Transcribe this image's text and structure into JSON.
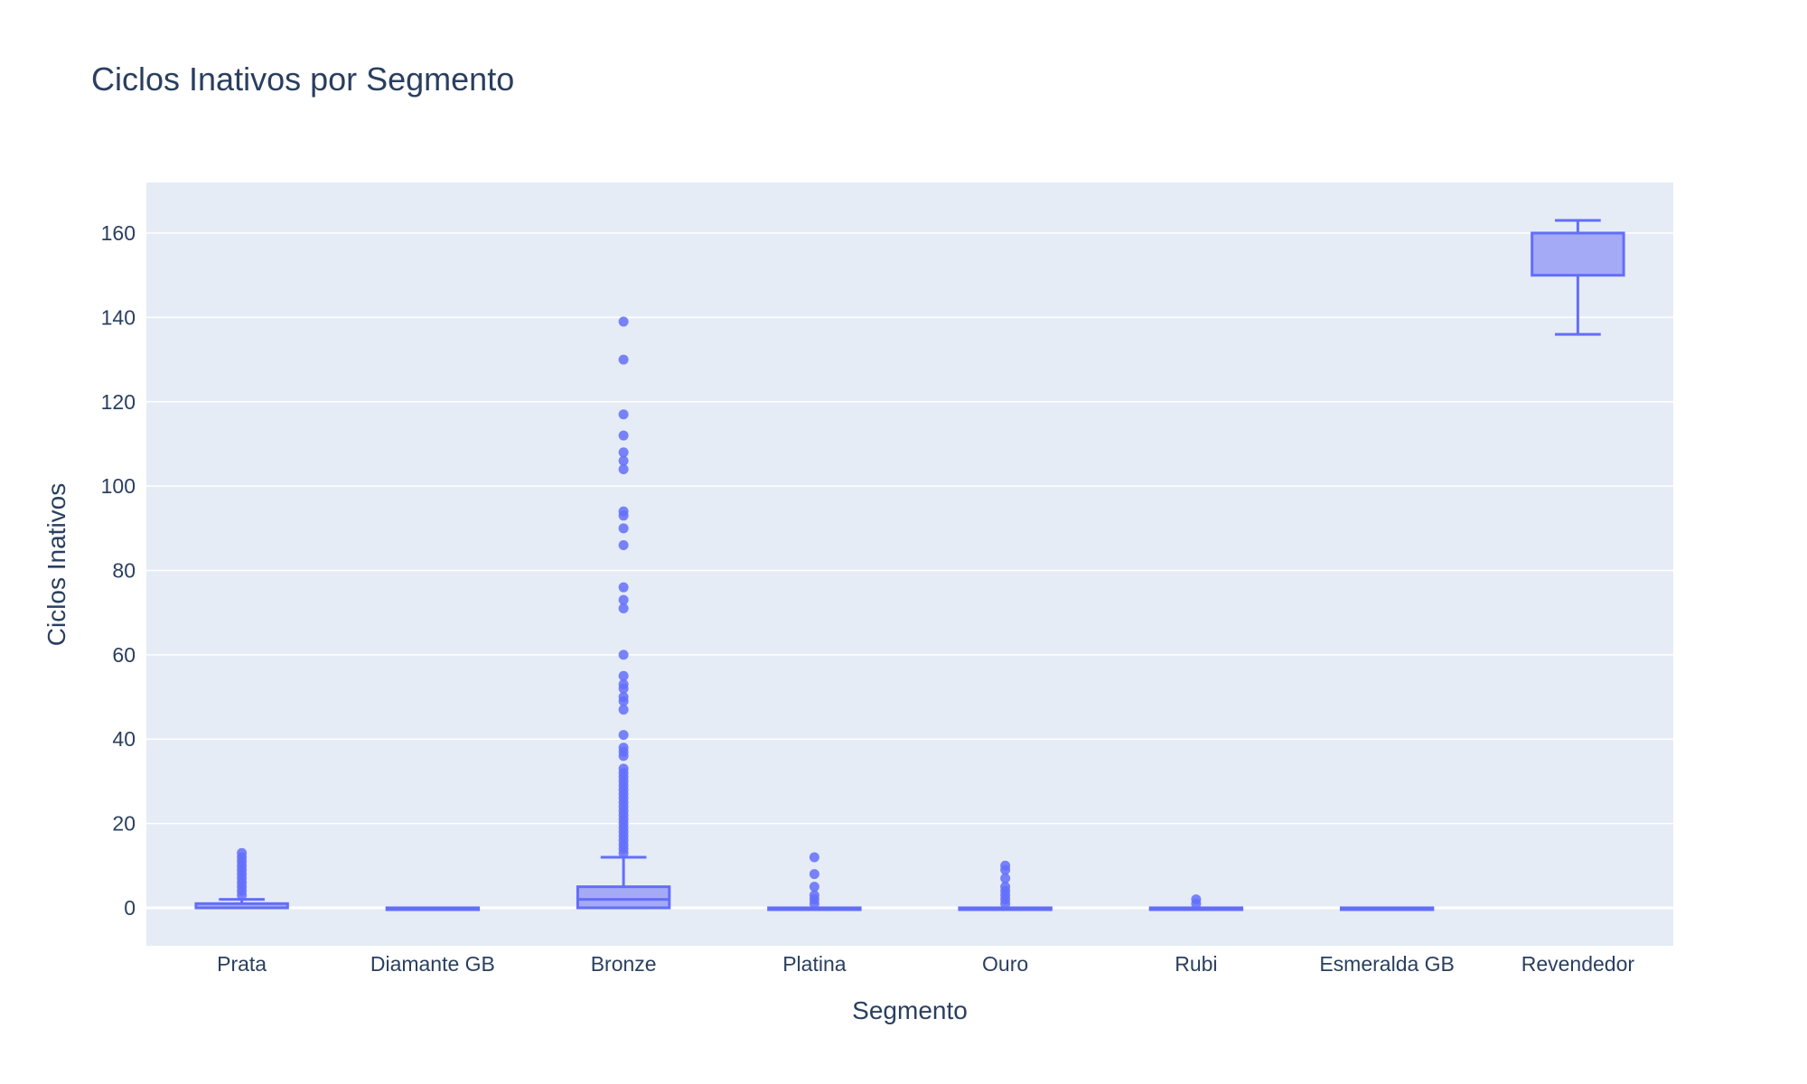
{
  "chart_data": {
    "type": "box",
    "title": "Ciclos Inativos por Segmento",
    "xlabel": "Segmento",
    "ylabel": "Ciclos Inativos",
    "ylim": [
      -9,
      172
    ],
    "yticks": [
      0,
      20,
      40,
      60,
      80,
      100,
      120,
      140,
      160
    ],
    "grid": true,
    "legend": "none",
    "colors": {
      "plot_bg": "#e5ecf6",
      "grid": "#ffffff",
      "box_line": "#636efa",
      "box_fill": "#a5aaf6",
      "outlier": "#636efa",
      "text": "#2a3f5f"
    },
    "categories": [
      "Prata",
      "Diamante GB",
      "Bronze",
      "Platina",
      "Ouro",
      "Rubi",
      "Esmeralda GB",
      "Revendedor"
    ],
    "boxes": [
      {
        "category": "Prata",
        "lowerfence": 0,
        "q1": 0,
        "median": 0,
        "q3": 1,
        "upperfence": 2,
        "outliers": [
          3,
          4,
          5,
          6,
          7,
          8,
          9,
          10,
          11,
          12,
          13
        ]
      },
      {
        "category": "Diamante GB",
        "lowerfence": 0,
        "q1": 0,
        "median": 0,
        "q3": 0,
        "upperfence": 0,
        "outliers": []
      },
      {
        "category": "Bronze",
        "lowerfence": 0,
        "q1": 0,
        "median": 2,
        "q3": 5,
        "upperfence": 12,
        "outliers": [
          13,
          14,
          15,
          16,
          17,
          18,
          19,
          20,
          21,
          22,
          23,
          24,
          25,
          26,
          27,
          28,
          29,
          30,
          31,
          32,
          33,
          36,
          37,
          38,
          41,
          47,
          49,
          50,
          52,
          53,
          55,
          60,
          71,
          73,
          76,
          86,
          90,
          93,
          94,
          104,
          106,
          108,
          112,
          117,
          130,
          139
        ]
      },
      {
        "category": "Platina",
        "lowerfence": 0,
        "q1": 0,
        "median": 0,
        "q3": 0,
        "upperfence": 0,
        "outliers": [
          1,
          2,
          3,
          5,
          8,
          12
        ]
      },
      {
        "category": "Ouro",
        "lowerfence": 0,
        "q1": 0,
        "median": 0,
        "q3": 0,
        "upperfence": 0,
        "outliers": [
          1,
          2,
          3,
          4,
          5,
          7,
          9,
          10
        ]
      },
      {
        "category": "Rubi",
        "lowerfence": 0,
        "q1": 0,
        "median": 0,
        "q3": 0,
        "upperfence": 0,
        "outliers": [
          1,
          2
        ]
      },
      {
        "category": "Esmeralda GB",
        "lowerfence": 0,
        "q1": 0,
        "median": 0,
        "q3": 0,
        "upperfence": 0,
        "outliers": []
      },
      {
        "category": "Revendedor",
        "lowerfence": 136,
        "q1": 150,
        "median": 160,
        "q3": 160,
        "upperfence": 163,
        "outliers": []
      }
    ]
  }
}
